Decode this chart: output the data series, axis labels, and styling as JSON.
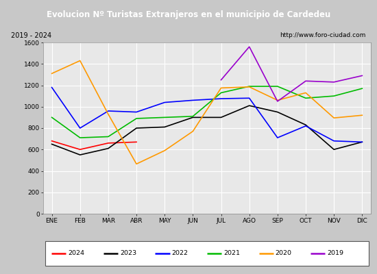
{
  "title": "Evolucion Nº Turistas Extranjeros en el municipio de Cardedeu",
  "subtitle_left": "2019 - 2024",
  "subtitle_right": "http://www.foro-ciudad.com",
  "months": [
    "ENE",
    "FEB",
    "MAR",
    "ABR",
    "MAY",
    "JUN",
    "JUL",
    "AGO",
    "SEP",
    "OCT",
    "NOV",
    "DIC"
  ],
  "series": {
    "2024": [
      680,
      600,
      660,
      670,
      null,
      null,
      null,
      null,
      null,
      null,
      null,
      null
    ],
    "2023": [
      650,
      550,
      610,
      800,
      810,
      900,
      900,
      1010,
      950,
      830,
      600,
      670
    ],
    "2022": [
      1180,
      800,
      960,
      950,
      1040,
      1060,
      1075,
      1080,
      710,
      820,
      680,
      670
    ],
    "2021": [
      900,
      710,
      720,
      890,
      900,
      910,
      1130,
      1190,
      1190,
      1080,
      1100,
      1170
    ],
    "2020": [
      1310,
      1430,
      930,
      465,
      590,
      770,
      1175,
      1185,
      1060,
      1130,
      895,
      920
    ],
    "2019": [
      null,
      null,
      null,
      null,
      null,
      null,
      1250,
      1560,
      1050,
      1240,
      1230,
      1290
    ]
  },
  "colors": {
    "2024": "#ff0000",
    "2023": "#000000",
    "2022": "#0000ff",
    "2021": "#00bb00",
    "2020": "#ff9900",
    "2019": "#9900cc"
  },
  "ylim": [
    0,
    1600
  ],
  "yticks": [
    0,
    200,
    400,
    600,
    800,
    1000,
    1200,
    1400,
    1600
  ],
  "title_bg": "#4472c4",
  "title_color": "#ffffff",
  "subtitle_bg": "#d4d4d4",
  "plot_bg": "#e8e8e8",
  "grid_color": "#ffffff",
  "linewidth": 1.2,
  "fig_bg": "#c8c8c8"
}
